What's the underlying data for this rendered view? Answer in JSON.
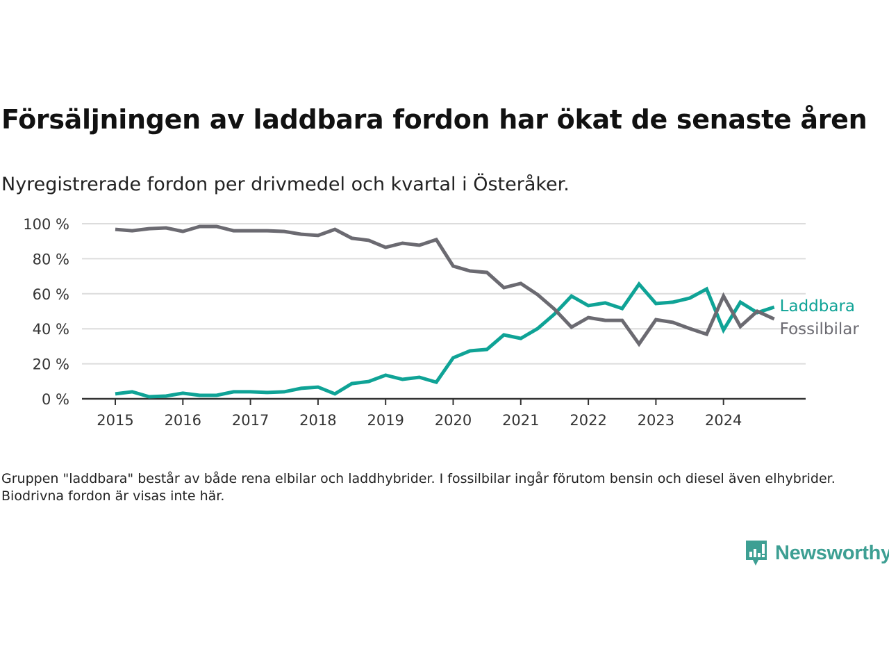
{
  "header": {
    "title": "Försäljningen av laddbara fordon har ökat de senaste åren",
    "subtitle": "Nyregistrerade fordon per drivmedel och kvartal i Österåker."
  },
  "footer": {
    "note": "Gruppen \"laddbara\" består av både rena elbilar och laddhybrider. I fossilbilar ingår förutom bensin och diesel även elhybrider. Biodrivna fordon är visas inte här.",
    "brand": "Newsworthy",
    "brand_icon": "bar-chart-speech-bubble-icon",
    "brand_color": "#3d9f93"
  },
  "chart_data": {
    "type": "line",
    "title": "Försäljningen av laddbara fordon har ökat de senaste åren",
    "subtitle": "Nyregistrerade fordon per drivmedel och kvartal i Österåker.",
    "xlabel": "",
    "ylabel": "",
    "x_unit": "quarter",
    "x": [
      "2015Q1",
      "2015Q2",
      "2015Q3",
      "2015Q4",
      "2016Q1",
      "2016Q2",
      "2016Q3",
      "2016Q4",
      "2017Q1",
      "2017Q2",
      "2017Q3",
      "2017Q4",
      "2018Q1",
      "2018Q2",
      "2018Q3",
      "2018Q4",
      "2019Q1",
      "2019Q2",
      "2019Q3",
      "2019Q4",
      "2020Q1",
      "2020Q2",
      "2020Q3",
      "2020Q4",
      "2021Q1",
      "2021Q2",
      "2021Q3",
      "2021Q4",
      "2022Q1",
      "2022Q2",
      "2022Q3",
      "2022Q4",
      "2023Q1",
      "2023Q2",
      "2023Q3",
      "2023Q4",
      "2024Q1",
      "2024Q2",
      "2024Q3",
      "2024Q4"
    ],
    "x_ticks": [
      "2015",
      "2016",
      "2017",
      "2018",
      "2019",
      "2020",
      "2021",
      "2022",
      "2023",
      "2024"
    ],
    "y_ticks": [
      "0 %",
      "20 %",
      "40 %",
      "60 %",
      "80 %",
      "100 %"
    ],
    "ylim": [
      0,
      100
    ],
    "grid": true,
    "legend": "inline labels at right end of lines",
    "series": [
      {
        "name": "Laddbara",
        "color": "#0fa396",
        "values": [
          2.8,
          4.0,
          1.2,
          1.6,
          3.2,
          2.0,
          2.0,
          4.0,
          4.0,
          3.6,
          4.0,
          6.0,
          6.7,
          2.8,
          8.7,
          9.9,
          13.5,
          11.1,
          12.3,
          9.5,
          23.4,
          27.4,
          28.2,
          36.5,
          34.5,
          40.1,
          48.4,
          58.7,
          53.2,
          54.8,
          51.6,
          65.5,
          54.4,
          55.2,
          57.5,
          62.7,
          39.3,
          55.2,
          49.2,
          52.4
        ]
      },
      {
        "name": "Fossilbilar",
        "color": "#6b6a71",
        "values": [
          96.8,
          96.0,
          97.2,
          97.6,
          95.6,
          98.4,
          98.4,
          96.0,
          96.0,
          96.0,
          95.6,
          94.0,
          93.3,
          96.8,
          91.7,
          90.5,
          86.5,
          88.9,
          87.7,
          90.9,
          75.8,
          73.0,
          72.2,
          63.5,
          65.9,
          59.5,
          51.2,
          40.9,
          46.4,
          44.8,
          44.8,
          31.3,
          45.2,
          43.7,
          40.1,
          36.9,
          58.7,
          41.3,
          50.0,
          45.6
        ]
      }
    ]
  }
}
